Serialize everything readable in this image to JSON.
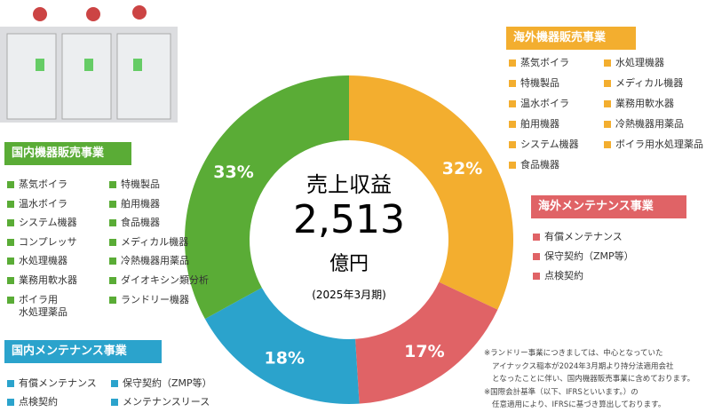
{
  "chart_data": {
    "type": "pie",
    "categories": [
      "海外機器販売事業",
      "海外メンテナンス事業",
      "国内メンテナンス事業",
      "国内機器販売事業"
    ],
    "values": [
      32,
      17,
      18,
      33
    ],
    "value_labels": [
      "32%",
      "17%",
      "18%",
      "33%"
    ],
    "colors": [
      "#f3ae2f",
      "#e06366",
      "#2ba3cc",
      "#5aac36"
    ],
    "center": {
      "title": "売上収益",
      "amount": "2,513",
      "unit": "億円",
      "period": "(2025年3月期)"
    }
  },
  "items": [
    [
      [
        "蒸気ボイラ",
        "特機製品",
        "温水ボイラ",
        "舶用機器",
        "システム機器",
        "食品機器"
      ],
      [
        "水処理機器",
        "メディカル機器",
        "業務用軟水器",
        "冷熱機器用薬品",
        "ボイラ用水処理薬品"
      ]
    ],
    [
      [
        "有償メンテナンス",
        "保守契約（ZMP等）",
        "点検契約"
      ]
    ],
    [
      [
        "有償メンテナンス",
        "点検契約"
      ],
      [
        "保守契約（ZMP等）",
        "メンテナンスリース"
      ]
    ],
    [
      [
        "蒸気ボイラ",
        "温水ボイラ",
        "システム機器",
        "コンプレッサ",
        "水処理機器",
        "業務用軟水器",
        "ボイラ用\n水処理薬品"
      ],
      [
        "特機製品",
        "舶用機器",
        "食品機器",
        "メディカル機器",
        "冷熱機器用薬品",
        "ダイオキシン類分析",
        "ランドリー機器"
      ]
    ]
  ],
  "notes": [
    "※ランドリー事業につきましては、中心となっていた",
    "アイナックス稲本が2024年3月期より持分法適用会社",
    "となったことに伴い、国内機器販売事業に含めております。",
    "※国際会計基準（以下、IFRSといいます。）の",
    "任意適用により、IFRSに基づき算出しております。"
  ]
}
